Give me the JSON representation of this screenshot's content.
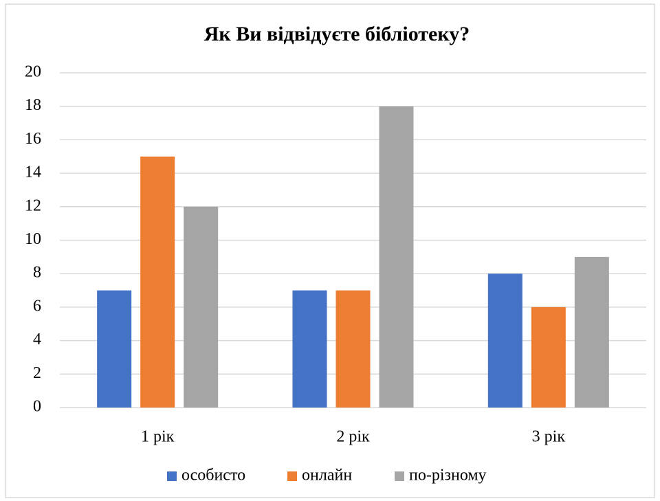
{
  "chart_data": {
    "type": "bar",
    "title": "Як Ви відвідуєте бібліотеку?",
    "categories": [
      "1 рік",
      "2 рік",
      "3 рік"
    ],
    "series": [
      {
        "name": "особисто",
        "color": "#4472c4",
        "values": [
          7,
          7,
          8
        ]
      },
      {
        "name": "онлайн",
        "color": "#ed7d31",
        "values": [
          15,
          7,
          6
        ]
      },
      {
        "name": "по-різному",
        "color": "#a5a5a5",
        "values": [
          12,
          18,
          9
        ]
      }
    ],
    "ylim": [
      0,
      20
    ],
    "yticks": [
      0,
      2,
      4,
      6,
      8,
      10,
      12,
      14,
      16,
      18,
      20
    ],
    "grid": true,
    "legend": "bottom"
  }
}
